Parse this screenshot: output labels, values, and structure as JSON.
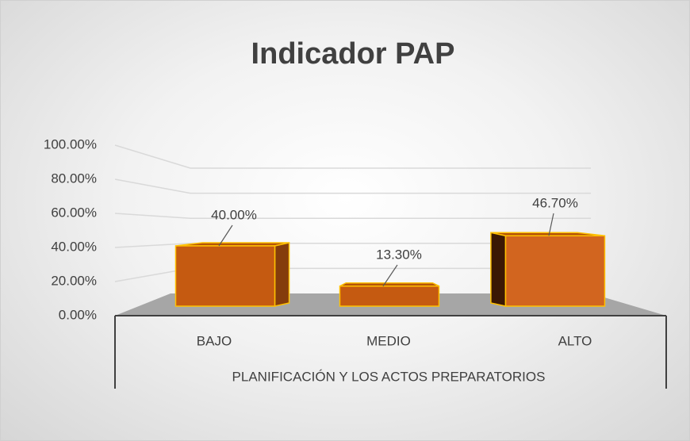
{
  "chart_data": {
    "type": "bar3d",
    "title": "Indicador PAP",
    "categories": [
      "BAJO",
      "MEDIO",
      "ALTO"
    ],
    "values": [
      40,
      13.3,
      46.7
    ],
    "value_labels": [
      "40.00%",
      "13.30%",
      "46.70%"
    ],
    "color": "#c55a11",
    "xlabel": "PLANIFICACIÓN Y LOS ACTOS PREPARATORIOS",
    "ylim": [
      0,
      100
    ],
    "yticks": [
      {
        "value": 0,
        "label": "0.00%"
      },
      {
        "value": 20,
        "label": "20.00%"
      },
      {
        "value": 40,
        "label": "40.00%"
      },
      {
        "value": 60,
        "label": "60.00%"
      },
      {
        "value": 80,
        "label": "80.00%"
      },
      {
        "value": 100,
        "label": "100.00%"
      }
    ],
    "grid": true
  }
}
